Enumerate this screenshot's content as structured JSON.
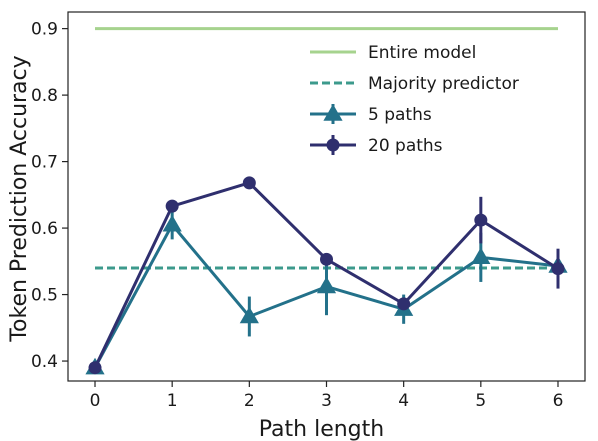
{
  "chart_data": {
    "type": "line",
    "title": "",
    "xlabel": "Path length",
    "ylabel": "Token Prediction Accuracy",
    "xlim": [
      -0.35,
      6.35
    ],
    "ylim": [
      0.37,
      0.925
    ],
    "x_ticks": [
      0,
      1,
      2,
      3,
      4,
      5,
      6
    ],
    "y_ticks": [
      0.4,
      0.5,
      0.6,
      0.7,
      0.8,
      0.9
    ],
    "grid": false,
    "legend_position": "top-right",
    "reference_lines": [
      {
        "name": "Entire model",
        "value": 0.9,
        "style": "solid",
        "color": "#a6d38e"
      },
      {
        "name": "Majority predictor",
        "value": 0.54,
        "style": "dashed",
        "color": "#3c9a8c"
      }
    ],
    "series": [
      {
        "name": "5 paths",
        "marker": "triangle",
        "color": "#23718a",
        "x": [
          0,
          1,
          2,
          3,
          4,
          5,
          6
        ],
        "y": [
          0.39,
          0.605,
          0.467,
          0.512,
          0.478,
          0.556,
          0.543
        ],
        "err": [
          0.0,
          0.022,
          0.03,
          0.043,
          0.022,
          0.037,
          0.012
        ]
      },
      {
        "name": "20 paths",
        "marker": "circle",
        "color": "#2f2f6e",
        "x": [
          0,
          1,
          2,
          3,
          4,
          5,
          6
        ],
        "y": [
          0.39,
          0.633,
          0.668,
          0.553,
          0.486,
          0.612,
          0.539
        ],
        "err": [
          0.0,
          0.006,
          0.006,
          0.007,
          0.008,
          0.035,
          0.03
        ]
      }
    ]
  }
}
